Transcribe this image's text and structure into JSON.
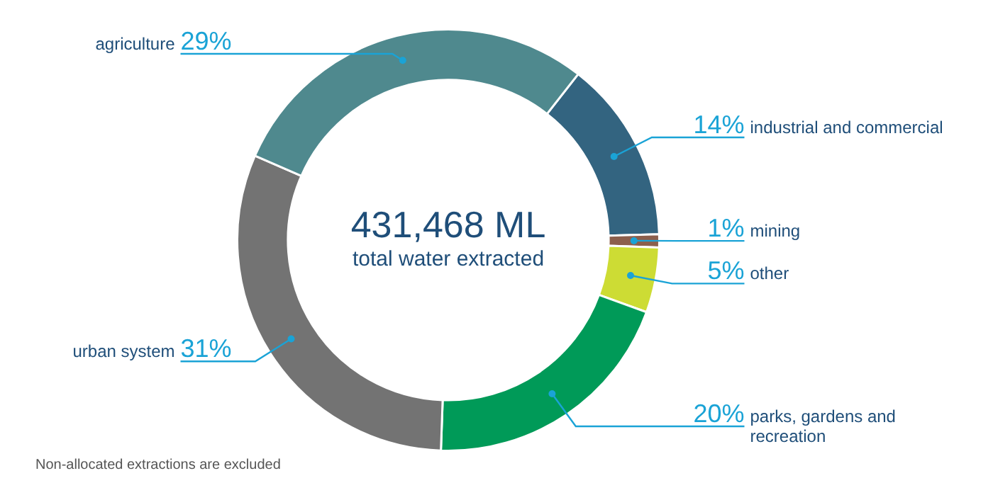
{
  "chart_data": {
    "type": "donut",
    "categories": [
      "industrial and commercial",
      "mining",
      "other",
      "parks, gardens and recreation",
      "urban system",
      "agriculture"
    ],
    "values": [
      14,
      1,
      5,
      20,
      31,
      29
    ],
    "colors": [
      "#336480",
      "#8c5f4c",
      "#cddc34",
      "#009a58",
      "#737373",
      "#4f898e"
    ],
    "value_labels": [
      "14%",
      "1%",
      "5%",
      "20%",
      "31%",
      "29%"
    ],
    "legend": false,
    "annotations": [
      "431,468 ML",
      "total water extracted",
      "Non-allocated extractions are excluded"
    ]
  }
}
